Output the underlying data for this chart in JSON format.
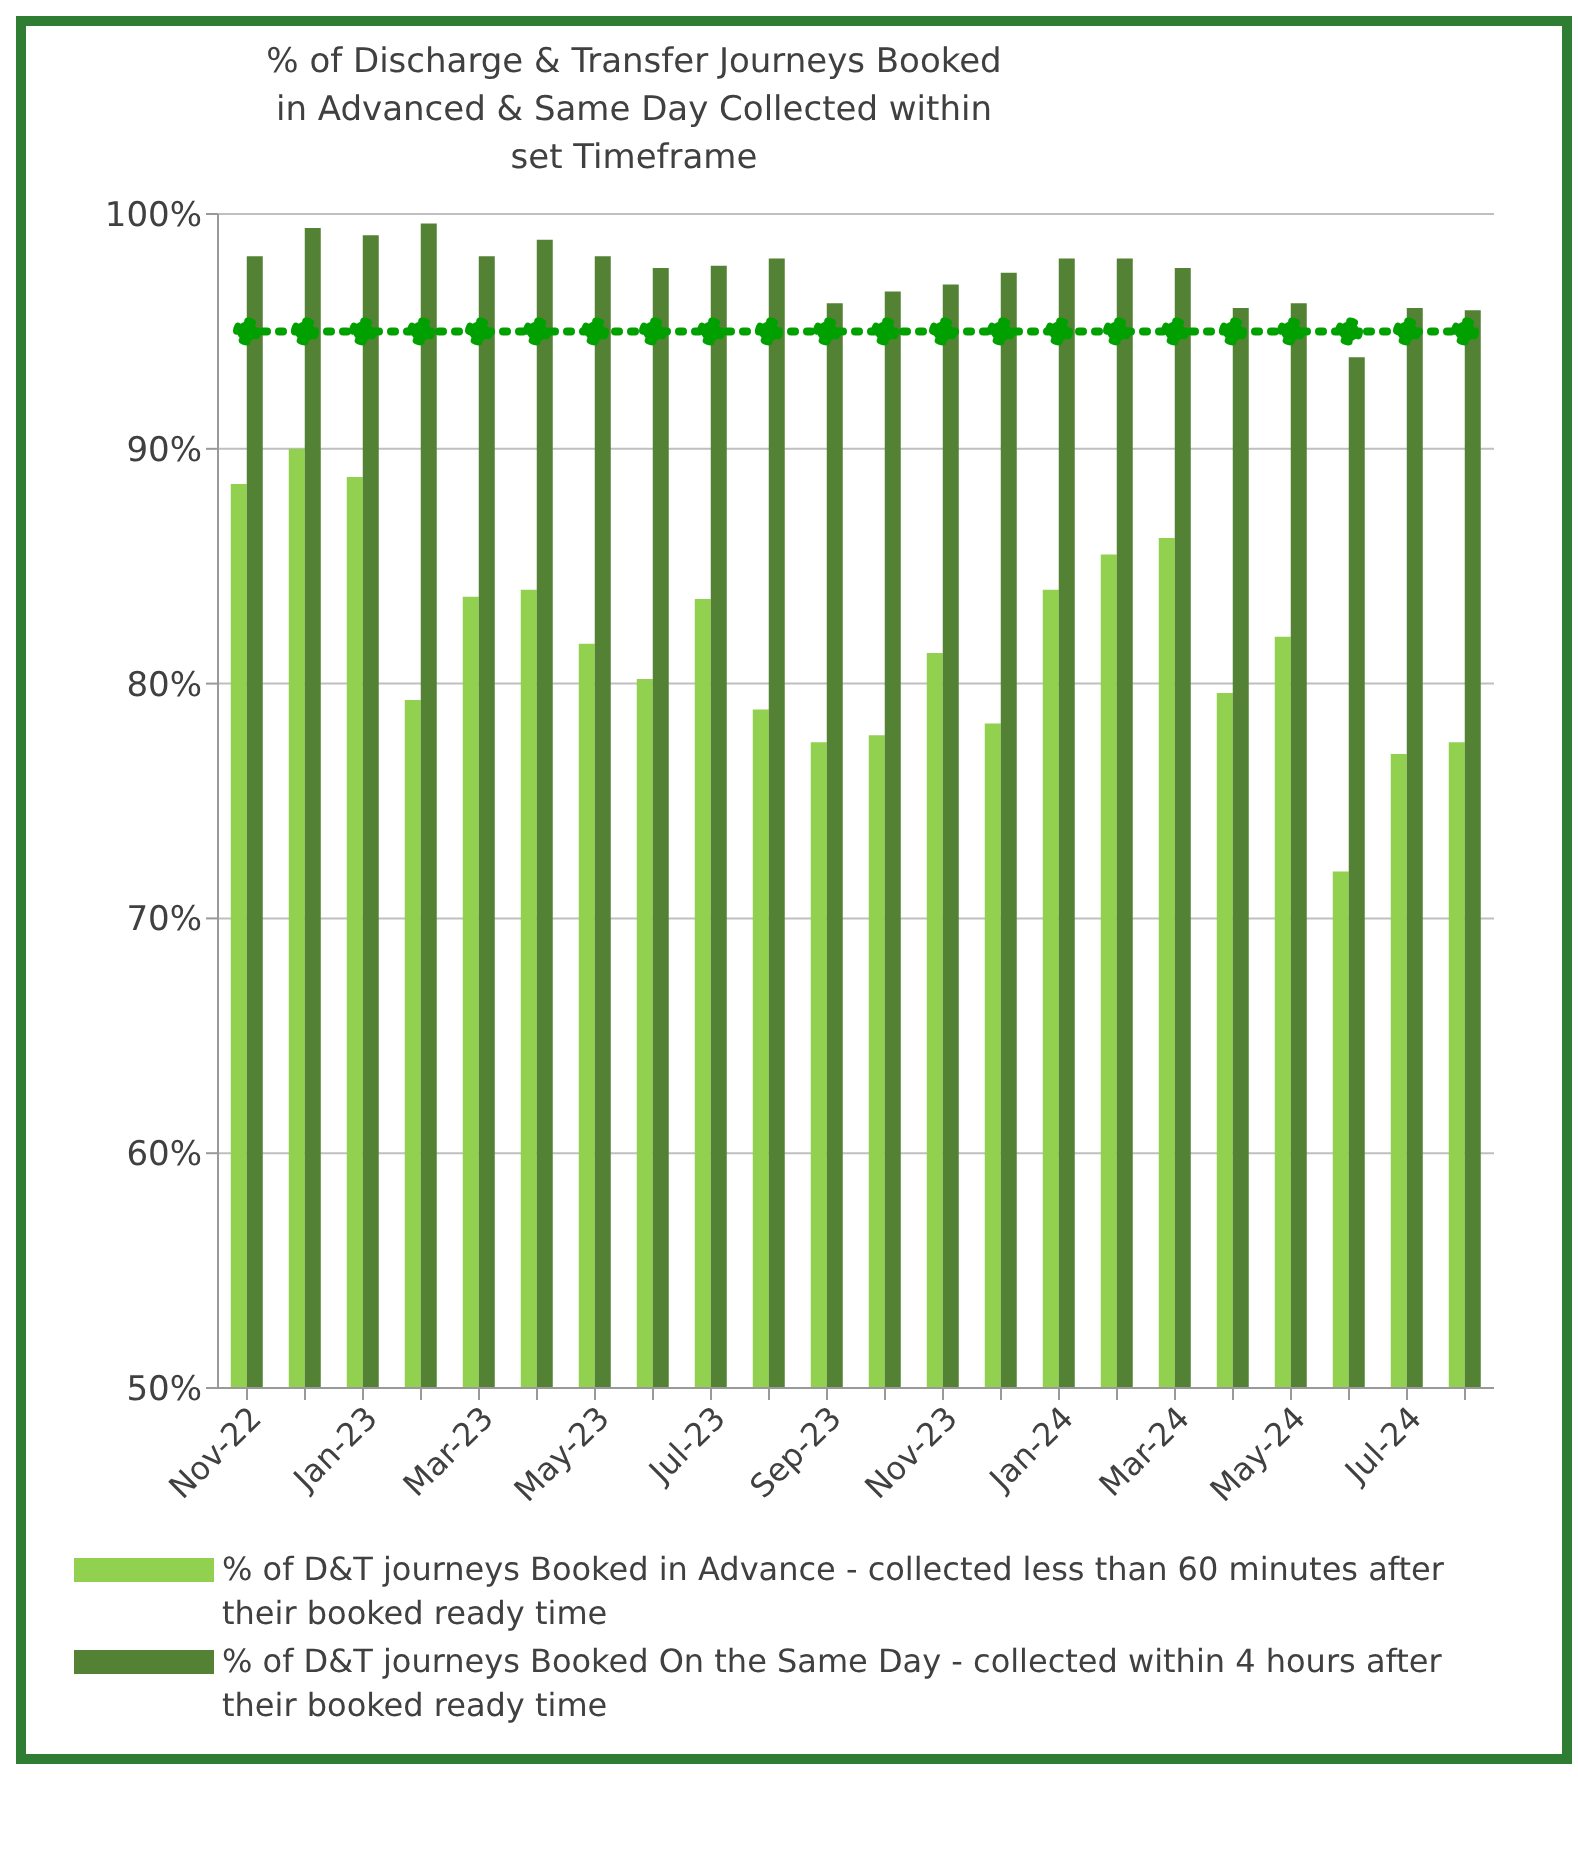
{
  "chart_data": {
    "type": "bar",
    "title": "% of Discharge & Transfer Journeys Booked in Advanced & Same Day Collected within set Timeframe",
    "categories": [
      "Nov-22",
      null,
      "Jan-23",
      null,
      "Mar-23",
      null,
      "May-23",
      null,
      "Jul-23",
      null,
      "Sep-23",
      null,
      "Nov-23",
      null,
      "Jan-24",
      null,
      "Mar-24",
      null,
      "May-24",
      null,
      "Jul-24",
      null
    ],
    "series": [
      {
        "name": "% of D&T journeys Booked in Advance - collected less than 60 minutes after their booked ready time",
        "color": "#92d050",
        "values": [
          88.5,
          90,
          88.8,
          79.3,
          83.7,
          84,
          81.7,
          80.2,
          83.6,
          78.9,
          77.5,
          77.8,
          81.3,
          78.3,
          84,
          85.5,
          86.2,
          79.6,
          82,
          72,
          77,
          77.5
        ]
      },
      {
        "name": "% of  D&T journeys Booked On the Same Day - collected within 4 hours after their booked ready time",
        "color": "#548235",
        "values": [
          98.2,
          99.4,
          99.1,
          99.6,
          98.2,
          98.9,
          98.2,
          97.7,
          97.8,
          98.1,
          96.2,
          96.7,
          97,
          97.5,
          98.1,
          98.1,
          97.7,
          96,
          96.2,
          93.9,
          96,
          95.9
        ]
      },
      {
        "type": "line",
        "color": "#00a000",
        "marker": "circle",
        "line_style": "dotted",
        "values": [
          95,
          95,
          95,
          95,
          95,
          95,
          95,
          95,
          95,
          95,
          95,
          95,
          95,
          95,
          95,
          95,
          95,
          95,
          95,
          95,
          95,
          95
        ]
      }
    ],
    "ylim": [
      50,
      100
    ],
    "yticks": [
      {
        "value": 50,
        "label": "50%"
      },
      {
        "value": 60,
        "label": "60%"
      },
      {
        "value": 70,
        "label": "70%"
      },
      {
        "value": 80,
        "label": "80%"
      },
      {
        "value": 90,
        "label": "90%"
      },
      {
        "value": 100,
        "label": "100%"
      }
    ],
    "grid": "y",
    "legend": "bottom"
  }
}
